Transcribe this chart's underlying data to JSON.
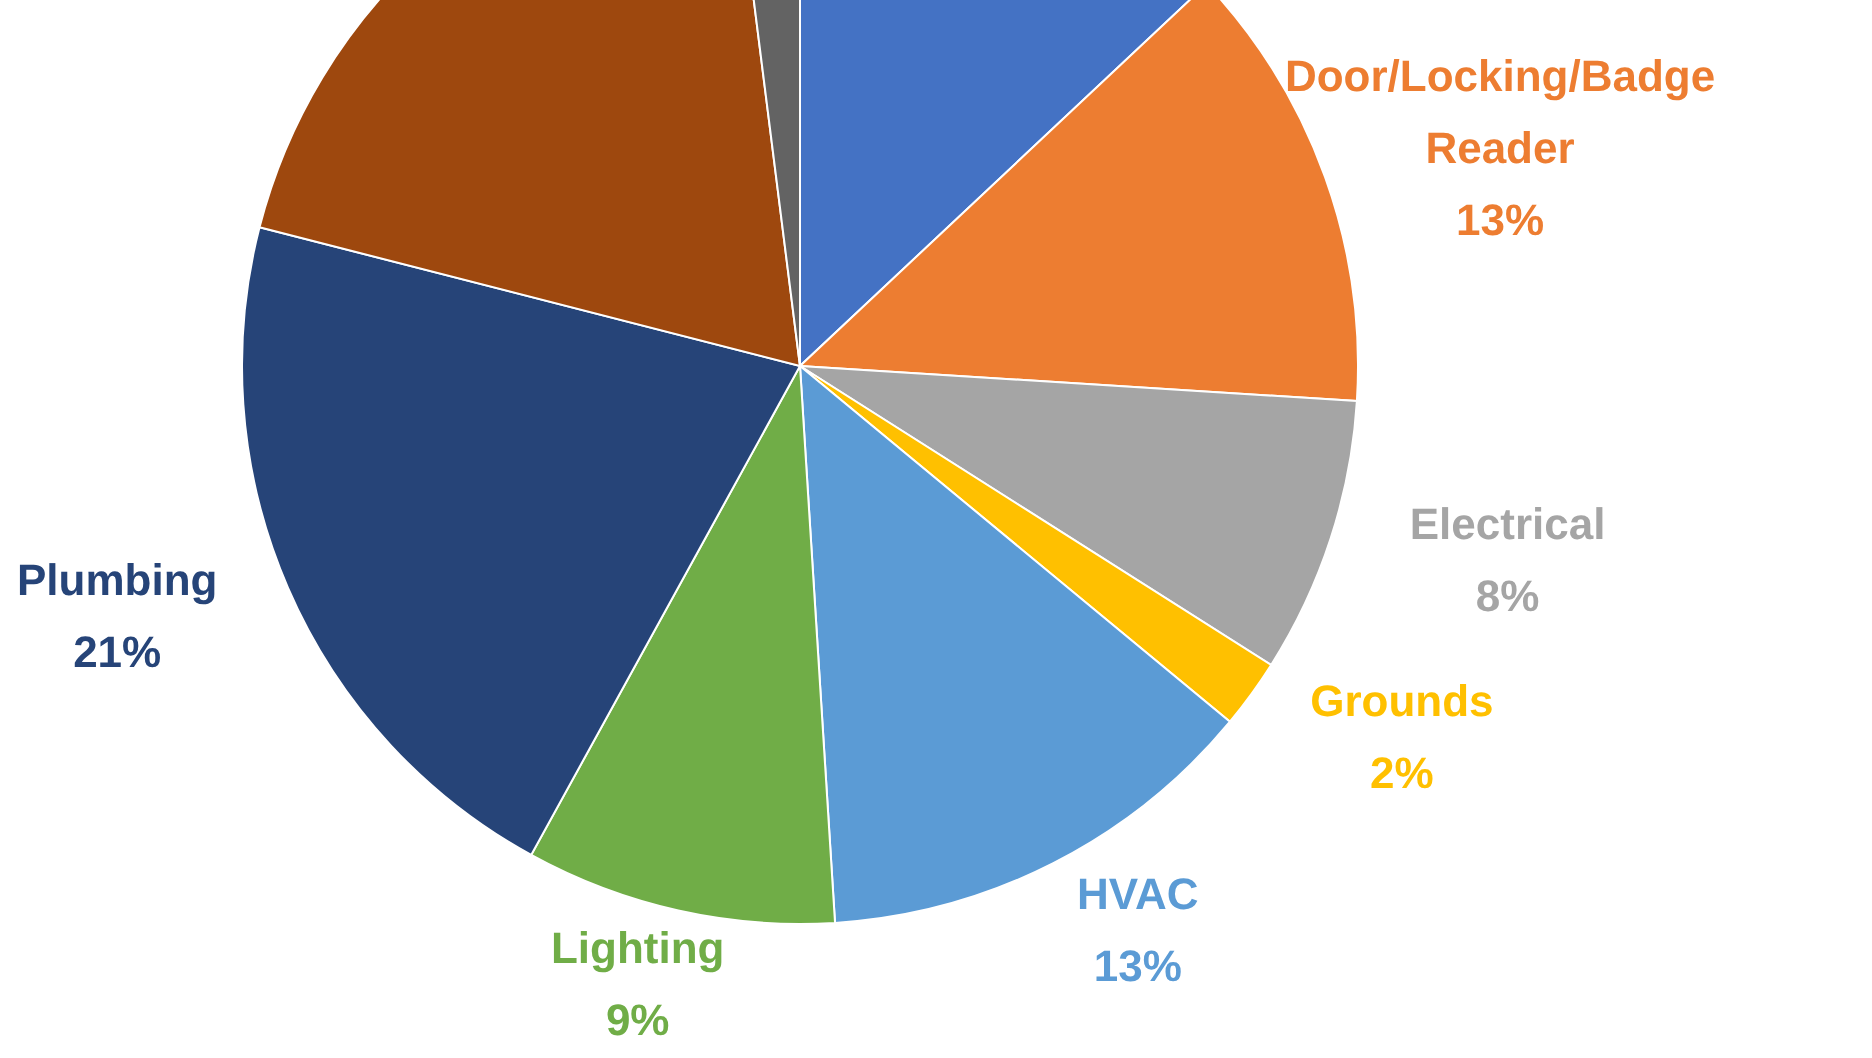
{
  "chart_data": {
    "type": "pie",
    "categories": [
      null,
      "Door/Locking/Badge Reader",
      "Electrical",
      "Grounds",
      "HVAC",
      "Lighting",
      "Plumbing",
      null,
      null
    ],
    "values": [
      13,
      13,
      8,
      2,
      13,
      9,
      21,
      19,
      2
    ],
    "value_labels": [
      null,
      "13%",
      "8%",
      "2%",
      "13%",
      "9%",
      "21%",
      null,
      null
    ],
    "colors": [
      "#4472c4",
      "#ed7d31",
      "#a5a5a5",
      "#ffc000",
      "#5b9bd5",
      "#70ad47",
      "#264478",
      "#9e480e",
      "#636363"
    ]
  }
}
